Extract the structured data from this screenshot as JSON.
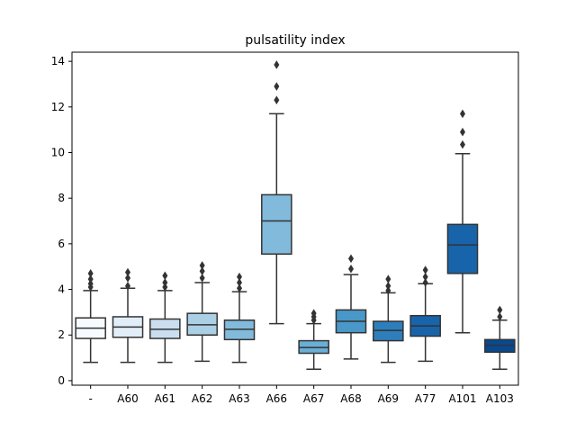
{
  "chart_data": {
    "type": "box",
    "title": "pulsatility index",
    "xlabel": "",
    "ylabel": "",
    "ylim": [
      -0.2,
      14.4
    ],
    "yticks": [
      0,
      2,
      4,
      6,
      8,
      10,
      12,
      14
    ],
    "grid": false,
    "legend": "none",
    "categories": [
      "-",
      "A60",
      "A61",
      "A62",
      "A63",
      "A66",
      "A67",
      "A68",
      "A69",
      "A77",
      "A101",
      "A103"
    ],
    "colors": [
      "#f7fbff",
      "#e1edf8",
      "#cadef0",
      "#abd0e6",
      "#82badb",
      "#82badb",
      "#6aaed6",
      "#4a98c9",
      "#2e7ebc",
      "#1764ab",
      "#1764ab",
      "#084a91"
    ],
    "boxes": [
      {
        "category": "-",
        "whisker_low": 0.8,
        "q1": 1.85,
        "median": 2.3,
        "q3": 2.75,
        "whisker_high": 3.95,
        "outliers": [
          4.1,
          4.25,
          4.45,
          4.7
        ]
      },
      {
        "category": "A60",
        "whisker_low": 0.8,
        "q1": 1.9,
        "median": 2.35,
        "q3": 2.8,
        "whisker_high": 4.05,
        "outliers": [
          4.15,
          4.5,
          4.75
        ]
      },
      {
        "category": "A61",
        "whisker_low": 0.8,
        "q1": 1.85,
        "median": 2.25,
        "q3": 2.7,
        "whisker_high": 3.95,
        "outliers": [
          4.1,
          4.3,
          4.6
        ]
      },
      {
        "category": "A62",
        "whisker_low": 0.85,
        "q1": 2.0,
        "median": 2.45,
        "q3": 2.95,
        "whisker_high": 4.3,
        "outliers": [
          4.5,
          4.8,
          5.05
        ]
      },
      {
        "category": "A63",
        "whisker_low": 0.8,
        "q1": 1.8,
        "median": 2.25,
        "q3": 2.65,
        "whisker_high": 3.9,
        "outliers": [
          4.05,
          4.3,
          4.55
        ]
      },
      {
        "category": "A66",
        "whisker_low": 2.5,
        "q1": 5.55,
        "median": 7.0,
        "q3": 8.15,
        "whisker_high": 11.7,
        "outliers": [
          12.3,
          12.9,
          13.85
        ]
      },
      {
        "category": "A67",
        "whisker_low": 0.5,
        "q1": 1.2,
        "median": 1.45,
        "q3": 1.75,
        "whisker_high": 2.5,
        "outliers": [
          2.65,
          2.8,
          2.95
        ]
      },
      {
        "category": "A68",
        "whisker_low": 0.95,
        "q1": 2.1,
        "median": 2.6,
        "q3": 3.1,
        "whisker_high": 4.65,
        "outliers": [
          4.9,
          5.35
        ]
      },
      {
        "category": "A69",
        "whisker_low": 0.8,
        "q1": 1.75,
        "median": 2.2,
        "q3": 2.6,
        "whisker_high": 3.85,
        "outliers": [
          3.95,
          4.15,
          4.45
        ]
      },
      {
        "category": "A77",
        "whisker_low": 0.85,
        "q1": 1.95,
        "median": 2.4,
        "q3": 2.85,
        "whisker_high": 4.25,
        "outliers": [
          4.3,
          4.55,
          4.85
        ]
      },
      {
        "category": "A101",
        "whisker_low": 2.1,
        "q1": 4.7,
        "median": 5.95,
        "q3": 6.85,
        "whisker_high": 9.95,
        "outliers": [
          10.35,
          10.9,
          11.7
        ]
      },
      {
        "category": "A103",
        "whisker_low": 0.5,
        "q1": 1.25,
        "median": 1.55,
        "q3": 1.8,
        "whisker_high": 2.65,
        "outliers": [
          2.8,
          3.1
        ]
      }
    ]
  }
}
